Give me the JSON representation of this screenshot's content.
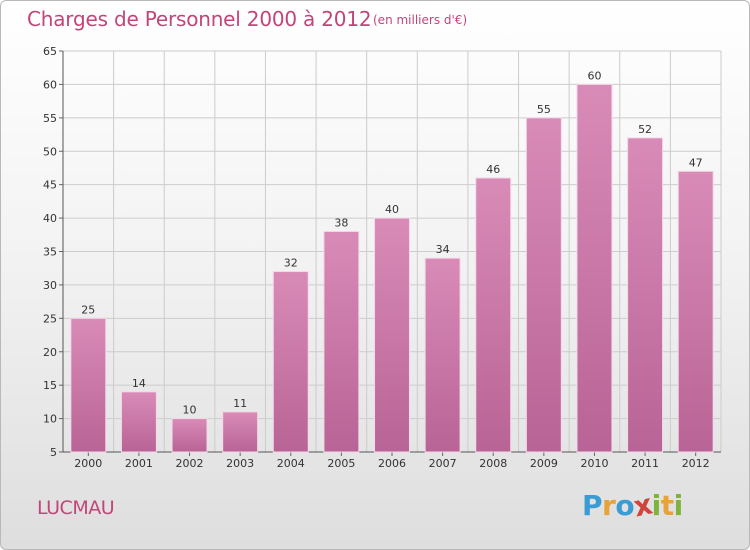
{
  "header": {
    "title": "Charges de Personnel 2000 à 2012",
    "subtitle": "(en milliers d'€)"
  },
  "footer": {
    "commune": "LUCMAU",
    "brand": "Proxiti",
    "brand_letters": [
      {
        "char": "P",
        "color": "#3a9bd5"
      },
      {
        "char": "r",
        "color": "#e8a23a"
      },
      {
        "char": "o",
        "color": "#3a9bd5"
      },
      {
        "char": "x",
        "color": "#d0453b"
      },
      {
        "char": "i",
        "color": "#7fb33c"
      },
      {
        "char": "t",
        "color": "#e8a23a"
      },
      {
        "char": "i",
        "color": "#7fb33c"
      }
    ]
  },
  "chart_data": {
    "type": "bar",
    "categories": [
      "2000",
      "2001",
      "2002",
      "2003",
      "2004",
      "2005",
      "2006",
      "2007",
      "2008",
      "2009",
      "2010",
      "2011",
      "2012"
    ],
    "values": [
      25,
      14,
      10,
      11,
      32,
      38,
      40,
      34,
      46,
      55,
      60,
      52,
      47
    ],
    "ylim": [
      5,
      65
    ],
    "yticks": [
      5,
      10,
      15,
      20,
      25,
      30,
      35,
      40,
      45,
      50,
      55,
      60,
      65
    ],
    "grid": true,
    "bar_color": "#d98bb7",
    "bar_color_dark": "#b86496",
    "grid_color": "#cccccc"
  }
}
